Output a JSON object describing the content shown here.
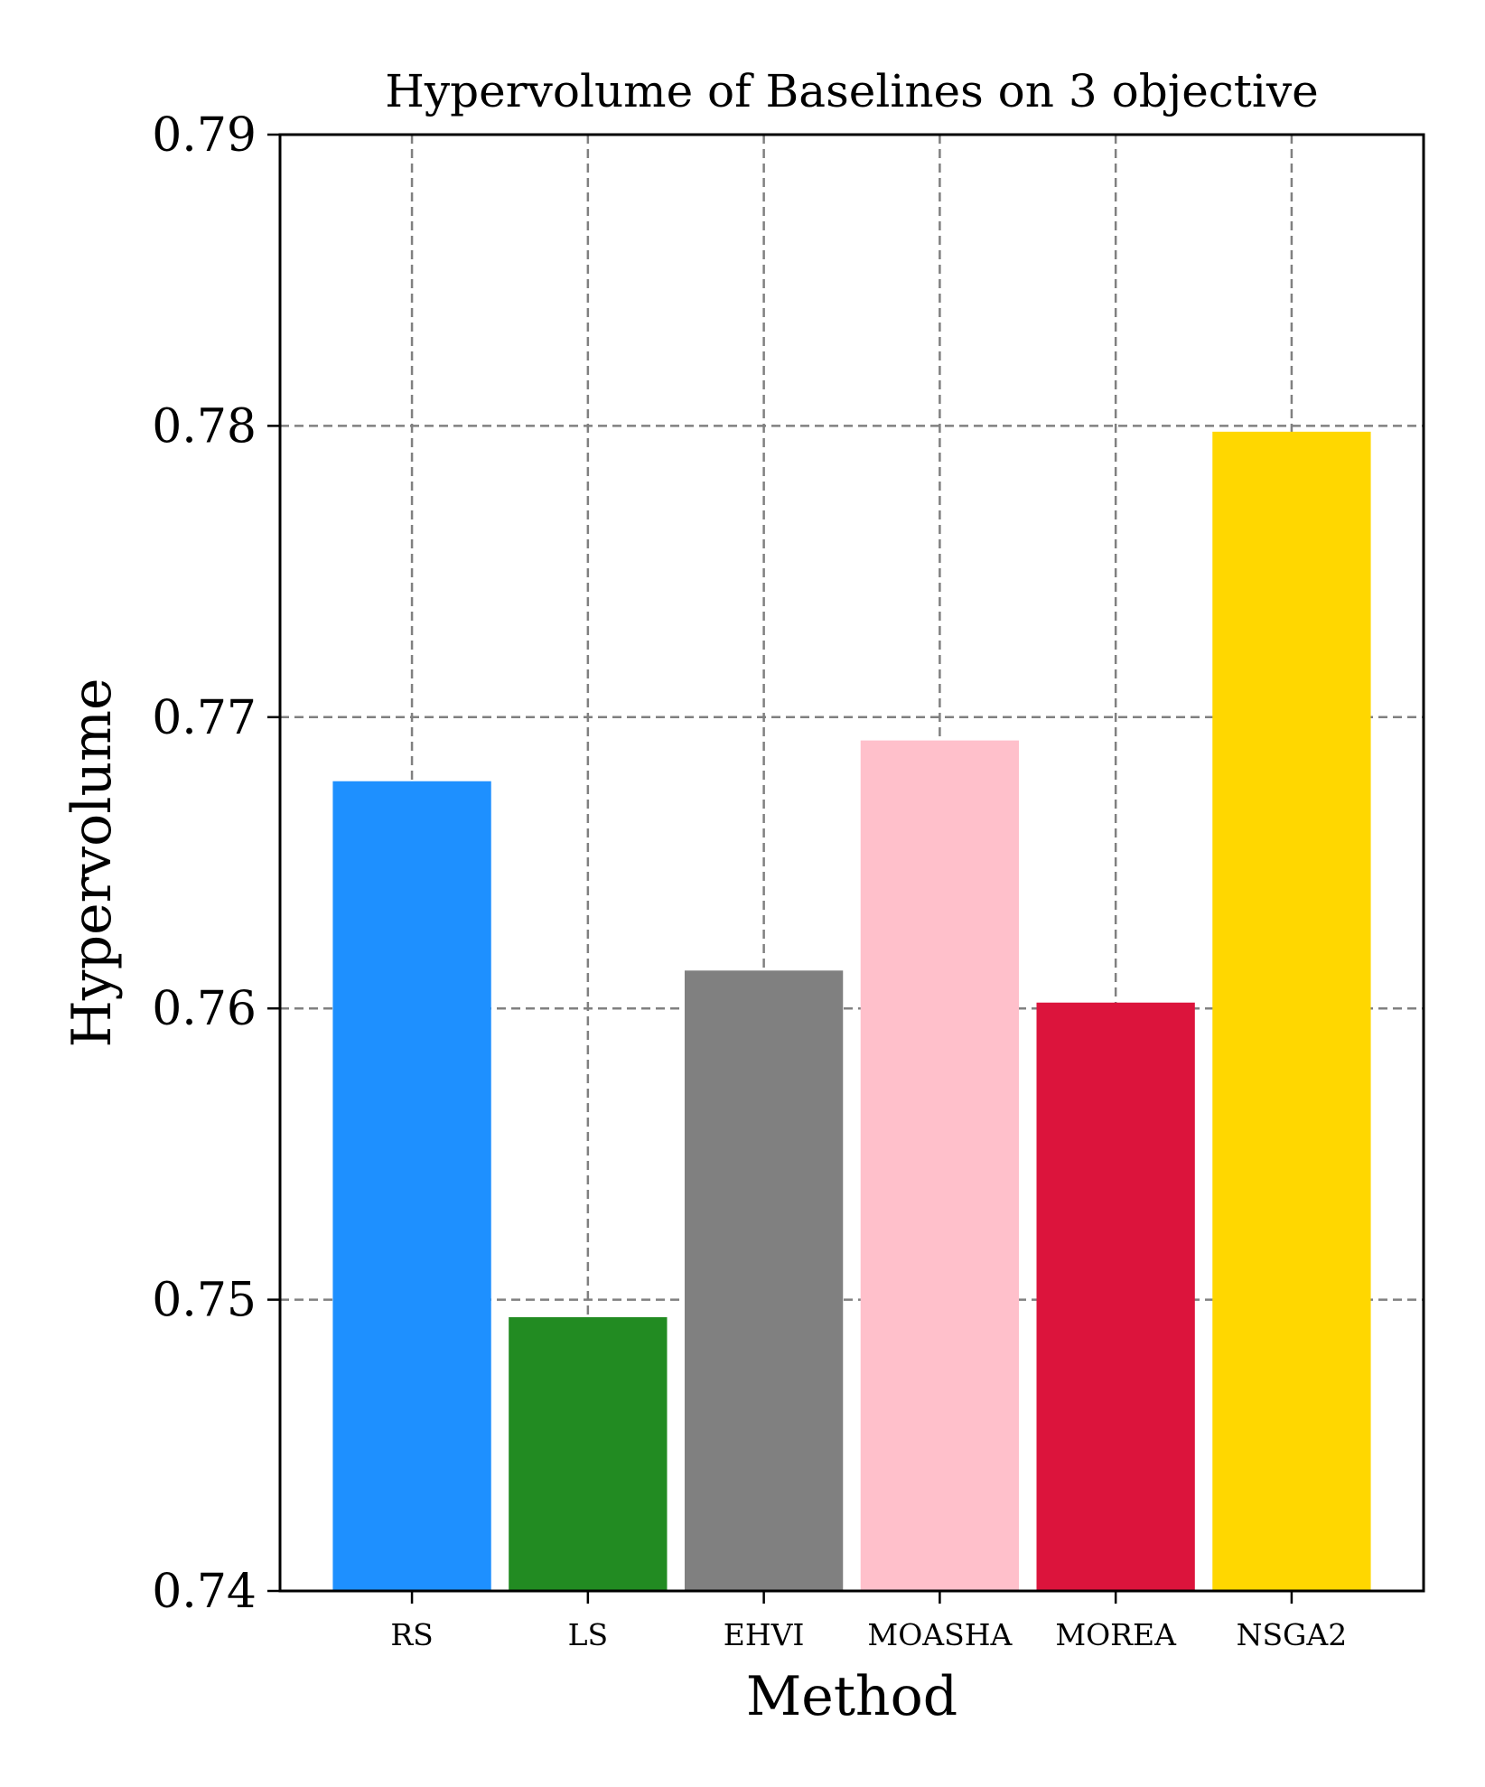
{
  "chart_data": {
    "type": "bar",
    "title": "Hypervolume of Baselines on 3 objective",
    "xlabel": "Method",
    "ylabel": "Hypervolume",
    "categories": [
      "RS",
      "LS",
      "EHVI",
      "MOASHA",
      "MOREA",
      "NSGA2"
    ],
    "values": [
      0.7678,
      0.7494,
      0.7613,
      0.7692,
      0.7602,
      0.7798
    ],
    "colors": [
      "#1E90FF",
      "#228B22",
      "#808080",
      "#FFC0CB",
      "#DC143C",
      "#FFD700"
    ],
    "ylim": [
      0.74,
      0.79
    ],
    "yticks": [
      "0.74",
      "0.75",
      "0.76",
      "0.77",
      "0.78",
      "0.79"
    ],
    "grid": true,
    "grid_style": "dashed"
  }
}
